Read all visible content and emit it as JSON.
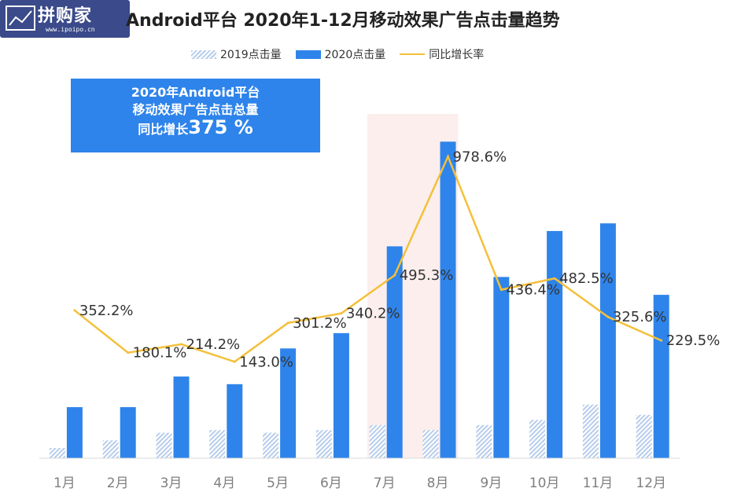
{
  "logo": {
    "text": "拼购家",
    "url": "www.ipoipo.cn"
  },
  "chart_data": {
    "type": "bar",
    "title": "Android平台  2020年1-12月移动效果广告点击量趋势",
    "categories": [
      "1月",
      "2月",
      "3月",
      "4月",
      "5月",
      "6月",
      "7月",
      "8月",
      "9月",
      "10月",
      "11月",
      "12月"
    ],
    "series": [
      {
        "name": "2019点击量",
        "values": [
          4,
          7,
          10,
          11,
          10,
          11,
          13,
          11,
          13,
          15,
          21,
          17
        ]
      },
      {
        "name": "2020点击量",
        "values": [
          20,
          20,
          32,
          29,
          43,
          49,
          83,
          124,
          71,
          89,
          92,
          64
        ]
      },
      {
        "name": "同比增长率",
        "type": "line",
        "values": [
          352.2,
          180.1,
          214.2,
          143.0,
          301.2,
          340.2,
          495.3,
          978.6,
          436.4,
          482.5,
          325.6,
          229.5
        ],
        "labels": [
          "352.2%",
          "180.1%",
          "214.2%",
          "143.0%",
          "301.2%",
          "340.2%",
          "495.3%",
          "978.6%",
          "436.4%",
          "482.5%",
          "325.6%",
          "229.5%"
        ]
      }
    ],
    "ylim": [
      0,
      125
    ],
    "growth_ylim": [
      -250,
      1050
    ],
    "highlight_categories": [
      "7月",
      "8月"
    ],
    "colors": {
      "y2019": "#b7cdeb",
      "y2020": "#2e84ea",
      "growth": "#f4c03a",
      "highlight": "#fbeeed"
    }
  },
  "callout": {
    "line1": "2020年Android平台",
    "line2": "移动效果广告点击总量",
    "line3_prefix": "同比增长",
    "line3_value": "375 %"
  }
}
